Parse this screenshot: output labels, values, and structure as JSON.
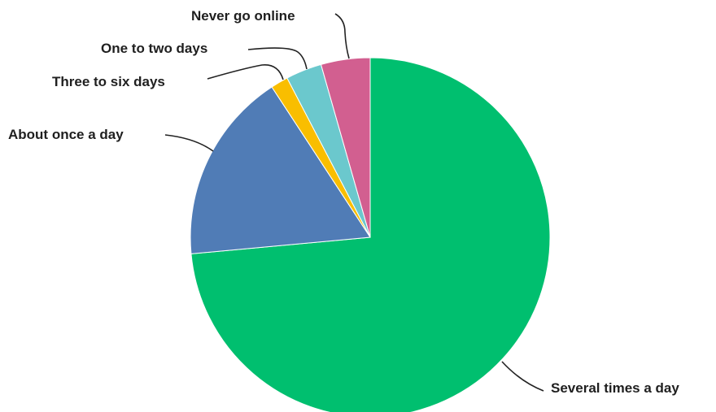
{
  "chart_data": {
    "type": "pie",
    "title": "",
    "start_angle_deg": 0,
    "direction": "clockwise",
    "slices": [
      {
        "label": "Several times a day",
        "value": 75.0,
        "color": "#00BF6F"
      },
      {
        "label": "About once a day",
        "value": 17.6,
        "color": "#507CB6"
      },
      {
        "label": "Three to six days",
        "value": 1.6,
        "color": "#F9BE00"
      },
      {
        "label": "One to two days",
        "value": 3.3,
        "color": "#6BC8CD"
      },
      {
        "label": "Never go online",
        "value": 4.5,
        "color": "#D25F90"
      }
    ]
  }
}
